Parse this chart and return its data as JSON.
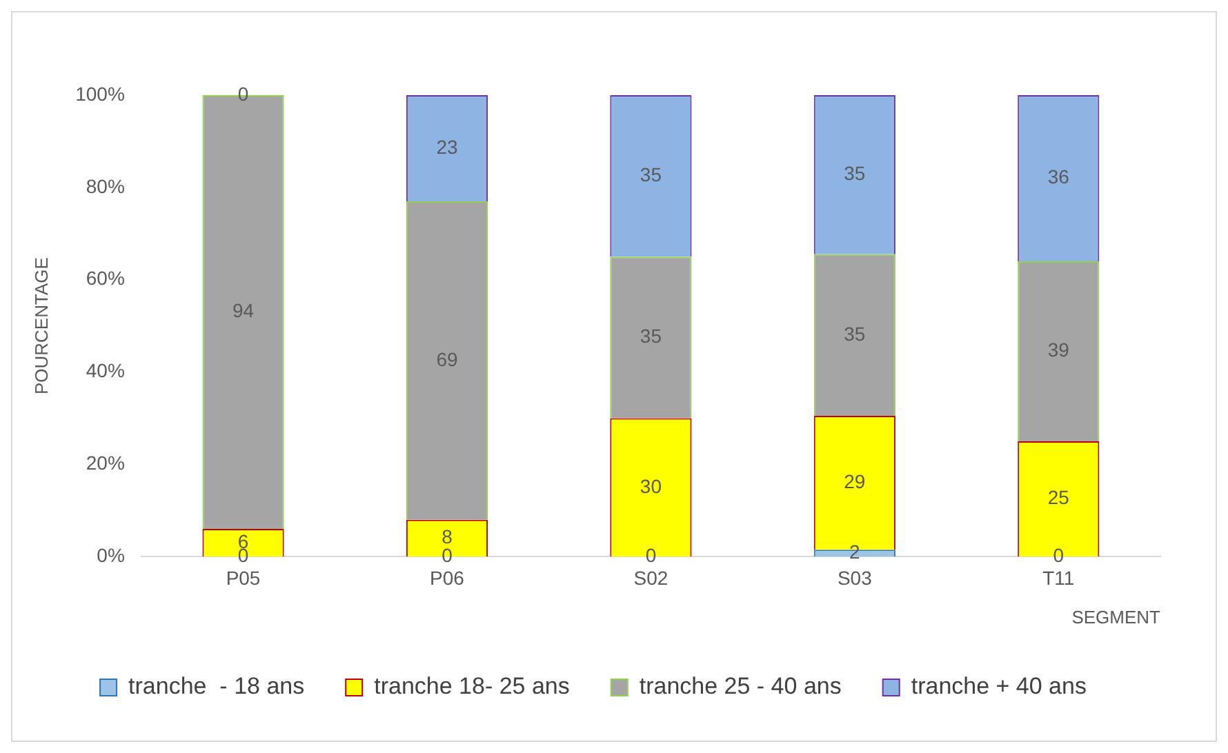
{
  "chart_data": {
    "type": "bar",
    "stacked": true,
    "xlabel": "SEGMENT",
    "ylabel": "POURCENTAGE",
    "categories": [
      "P05",
      "P06",
      "S02",
      "S03",
      "T11"
    ],
    "series": [
      {
        "name": "tranche  - 18 ans",
        "color": "#9dc3e6",
        "values": [
          null,
          null,
          null,
          1.5,
          null
        ],
        "value_labels": [
          null,
          null,
          null,
          "2",
          null
        ]
      },
      {
        "name": "tranche 18- 25 ans",
        "color": "#ffff00",
        "values": [
          6,
          8,
          30,
          29,
          25
        ],
        "value_labels": [
          "6",
          "8",
          "30",
          "29",
          "25"
        ]
      },
      {
        "name": "tranche 25 - 40 ans",
        "color": "#a5a5a5",
        "values": [
          94,
          69,
          35,
          35,
          39
        ],
        "value_labels": [
          "94",
          "69",
          "35",
          "35",
          "39"
        ]
      },
      {
        "name": "tranche + 40 ans",
        "color": "#8eb4e3",
        "values": [
          null,
          23,
          35,
          34.5,
          36
        ],
        "value_labels": [
          null,
          "23",
          "35",
          "35",
          "36"
        ]
      }
    ],
    "annotations": [
      {
        "text": "0",
        "x": "P05",
        "y": 100
      },
      {
        "text": "0",
        "x": "P05",
        "y": 0
      },
      {
        "text": "0",
        "x": "P06",
        "y": 0
      },
      {
        "text": "0",
        "x": "S02",
        "y": 0
      },
      {
        "text": "0",
        "x": "T11",
        "y": 0
      }
    ],
    "ylim": [
      0,
      100
    ],
    "yticks": [
      {
        "value": 0,
        "label": "0%"
      },
      {
        "value": 20,
        "label": "20%"
      },
      {
        "value": 40,
        "label": "40%"
      },
      {
        "value": 60,
        "label": "60%"
      },
      {
        "value": 80,
        "label": "80%"
      },
      {
        "value": 100,
        "label": "100%"
      }
    ],
    "grid": false,
    "legend": "bottom"
  }
}
